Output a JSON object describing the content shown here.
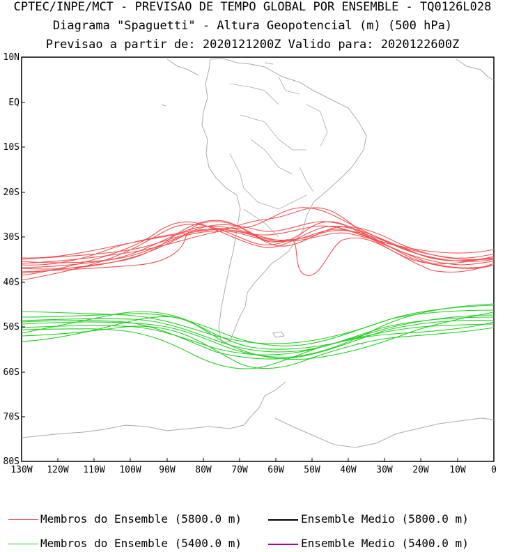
{
  "titles": {
    "line1": "CPTEC/INPE/MCT - PREVISAO DE TEMPO GLOBAL POR ENSEMBLE - TQ0126L028",
    "line2": "Diagrama \"Spaguetti\" - Altura Geopotencial (m) (500 hPa)",
    "line3": "Previsao a partir de: 2020121200Z  Valido para: 2020122600Z"
  },
  "axes": {
    "lat_labels": [
      "10N",
      "EQ",
      "10S",
      "20S",
      "30S",
      "40S",
      "50S",
      "60S",
      "70S",
      "80S"
    ],
    "lon_labels": [
      "130W",
      "120W",
      "110W",
      "100W",
      "90W",
      "80W",
      "70W",
      "60W",
      "50W",
      "40W",
      "30W",
      "20W",
      "10W",
      "0"
    ]
  },
  "legend": [
    {
      "label": "Membros do Ensemble (5800.0 m)",
      "color": "#f05050"
    },
    {
      "label": "Ensemble Medio (5800.0 m)",
      "color": "#000000"
    },
    {
      "label": "Membros do Ensemble (5400.0 m)",
      "color": "#22cc22"
    },
    {
      "label": "Ensemble Medio (5400.0 m)",
      "color": "#aa00aa"
    }
  ],
  "colors": {
    "member_5800": "#f05050",
    "member_5400": "#22cc22",
    "coastline": "#aaaaaa"
  }
}
